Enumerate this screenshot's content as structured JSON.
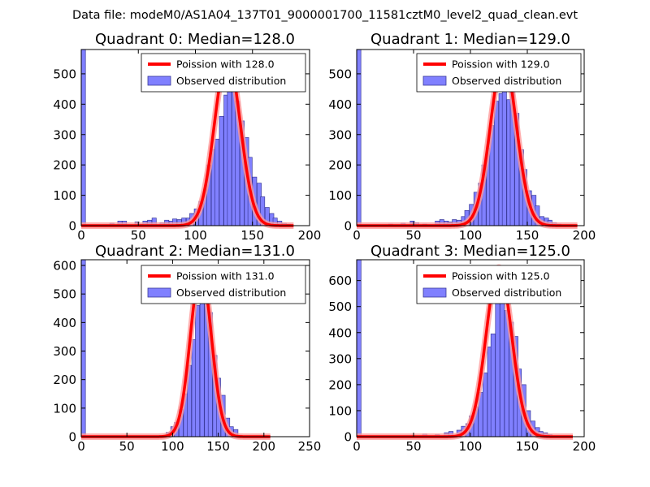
{
  "figure": {
    "suptitle": "Data file: modeM0/AS1A04_137T01_9000001700_11581cztM0_level2_quad_clean.evt",
    "bar_color": "#8080ff",
    "bar_edge": "#3a3a9a",
    "curve_color": "#ff0000",
    "curve_halo": "#ff9a9a"
  },
  "chart_data": [
    {
      "type": "bar",
      "title": "Quadrant 0: Median=128.0",
      "median": 128.0,
      "xlim": [
        0,
        200
      ],
      "ylim": [
        0,
        580
      ],
      "xticks": [
        0,
        50,
        100,
        150,
        200
      ],
      "yticks": [
        0,
        100,
        200,
        300,
        400,
        500
      ],
      "xtick_labels": [
        "0",
        "50",
        "100",
        "150",
        "200"
      ],
      "ytick_labels": [
        "0",
        "100",
        "200",
        "300",
        "400",
        "500"
      ],
      "legend": {
        "position": "top-right",
        "line_label": "Poission with 128.0",
        "bar_label": "Observed distribution"
      },
      "bin_width": 3.7,
      "bins": [
        [
          0,
          580
        ],
        [
          25,
          8
        ],
        [
          32,
          15
        ],
        [
          36,
          15
        ],
        [
          47,
          12
        ],
        [
          51,
          5
        ],
        [
          54,
          15
        ],
        [
          58,
          18
        ],
        [
          62,
          25
        ],
        [
          69,
          10
        ],
        [
          73,
          18
        ],
        [
          77,
          15
        ],
        [
          80,
          22
        ],
        [
          84,
          20
        ],
        [
          88,
          25
        ],
        [
          92,
          25
        ],
        [
          95,
          40
        ],
        [
          99,
          55
        ],
        [
          103,
          80
        ],
        [
          107,
          120
        ],
        [
          110,
          200
        ],
        [
          114,
          250
        ],
        [
          117,
          285
        ],
        [
          121,
          360
        ],
        [
          125,
          430
        ],
        [
          128,
          460
        ],
        [
          132,
          485
        ],
        [
          135,
          410
        ],
        [
          139,
          345
        ],
        [
          143,
          290
        ],
        [
          146,
          225
        ],
        [
          150,
          160
        ],
        [
          154,
          140
        ],
        [
          157,
          95
        ],
        [
          161,
          60
        ],
        [
          165,
          40
        ],
        [
          168,
          25
        ],
        [
          172,
          15
        ],
        [
          176,
          8
        ],
        [
          180,
          5
        ]
      ],
      "curve": {
        "mu": 128.0,
        "peak": 555,
        "x_start": 0,
        "x_end": 186
      }
    },
    {
      "type": "bar",
      "title": "Quadrant 1: Median=129.0",
      "median": 129.0,
      "xlim": [
        0,
        200
      ],
      "ylim": [
        0,
        580
      ],
      "xticks": [
        0,
        50,
        100,
        150,
        200
      ],
      "yticks": [
        0,
        100,
        200,
        300,
        400,
        500
      ],
      "xtick_labels": [
        "0",
        "50",
        "100",
        "150",
        "200"
      ],
      "ytick_labels": [
        "0",
        "100",
        "200",
        "300",
        "400",
        "500"
      ],
      "legend": {
        "position": "top-right",
        "line_label": "Poission with 129.0",
        "bar_label": "Observed distribution"
      },
      "bin_width": 3.7,
      "bins": [
        [
          0,
          580
        ],
        [
          28,
          5
        ],
        [
          39,
          8
        ],
        [
          47,
          15
        ],
        [
          51,
          10
        ],
        [
          58,
          5
        ],
        [
          69,
          15
        ],
        [
          73,
          20
        ],
        [
          77,
          15
        ],
        [
          80,
          12
        ],
        [
          84,
          20
        ],
        [
          88,
          18
        ],
        [
          92,
          30
        ],
        [
          95,
          50
        ],
        [
          99,
          70
        ],
        [
          103,
          110
        ],
        [
          107,
          140
        ],
        [
          110,
          200
        ],
        [
          114,
          255
        ],
        [
          117,
          330
        ],
        [
          121,
          410
        ],
        [
          125,
          435
        ],
        [
          128,
          555
        ],
        [
          132,
          415
        ],
        [
          135,
          465
        ],
        [
          139,
          370
        ],
        [
          143,
          250
        ],
        [
          146,
          185
        ],
        [
          150,
          115
        ],
        [
          154,
          100
        ],
        [
          157,
          65
        ],
        [
          161,
          30
        ],
        [
          165,
          25
        ],
        [
          168,
          18
        ],
        [
          172,
          10
        ],
        [
          176,
          5
        ]
      ],
      "curve": {
        "mu": 129.0,
        "peak": 550,
        "x_start": 0,
        "x_end": 194
      }
    },
    {
      "type": "bar",
      "title": "Quadrant 2: Median=131.0",
      "median": 131.0,
      "xlim": [
        0,
        250
      ],
      "ylim": [
        0,
        620
      ],
      "xticks": [
        0,
        50,
        100,
        150,
        200,
        250
      ],
      "yticks": [
        0,
        100,
        200,
        300,
        400,
        500,
        600
      ],
      "xtick_labels": [
        "0",
        "50",
        "100",
        "150",
        "200",
        "250"
      ],
      "ytick_labels": [
        "0",
        "100",
        "200",
        "300",
        "400",
        "500",
        "600"
      ],
      "legend": {
        "position": "top-right",
        "line_label": "Poission with 131.0",
        "bar_label": "Observed distribution"
      },
      "bin_width": 4.6,
      "bins": [
        [
          0,
          620
        ],
        [
          93,
          15
        ],
        [
          98,
          35
        ],
        [
          102,
          50
        ],
        [
          107,
          95
        ],
        [
          112,
          150
        ],
        [
          116,
          250
        ],
        [
          121,
          340
        ],
        [
          125,
          460
        ],
        [
          130,
          580
        ],
        [
          135,
          545
        ],
        [
          139,
          435
        ],
        [
          144,
          285
        ],
        [
          148,
          205
        ],
        [
          153,
          145
        ],
        [
          158,
          65
        ],
        [
          162,
          35
        ],
        [
          167,
          25
        ],
        [
          171,
          5
        ]
      ],
      "curve": {
        "mu": 131.0,
        "peak": 585,
        "x_start": 0,
        "x_end": 207
      }
    },
    {
      "type": "bar",
      "title": "Quadrant 3: Median=125.0",
      "median": 125.0,
      "xlim": [
        0,
        200
      ],
      "ylim": [
        0,
        680
      ],
      "xticks": [
        0,
        50,
        100,
        150,
        200
      ],
      "yticks": [
        0,
        100,
        200,
        300,
        400,
        500,
        600
      ],
      "xtick_labels": [
        "0",
        "50",
        "100",
        "150",
        "200"
      ],
      "ytick_labels": [
        "0",
        "100",
        "200",
        "300",
        "400",
        "500",
        "600"
      ],
      "legend": {
        "position": "top-right",
        "line_label": "Poission with 125.0",
        "bar_label": "Observed distribution"
      },
      "bin_width": 3.8,
      "bins": [
        [
          0,
          680
        ],
        [
          58,
          10
        ],
        [
          69,
          8
        ],
        [
          77,
          15
        ],
        [
          81,
          20
        ],
        [
          88,
          25
        ],
        [
          92,
          40
        ],
        [
          96,
          50
        ],
        [
          99,
          80
        ],
        [
          103,
          115
        ],
        [
          107,
          170
        ],
        [
          111,
          245
        ],
        [
          115,
          345
        ],
        [
          118,
          395
        ],
        [
          122,
          565
        ],
        [
          126,
          520
        ],
        [
          130,
          485
        ],
        [
          134,
          440
        ],
        [
          138,
          385
        ],
        [
          141,
          260
        ],
        [
          145,
          200
        ],
        [
          149,
          100
        ],
        [
          153,
          60
        ],
        [
          157,
          35
        ],
        [
          160,
          20
        ],
        [
          164,
          15
        ],
        [
          168,
          8
        ]
      ],
      "curve": {
        "mu": 125.0,
        "peak": 650,
        "x_start": 0,
        "x_end": 190
      }
    }
  ]
}
